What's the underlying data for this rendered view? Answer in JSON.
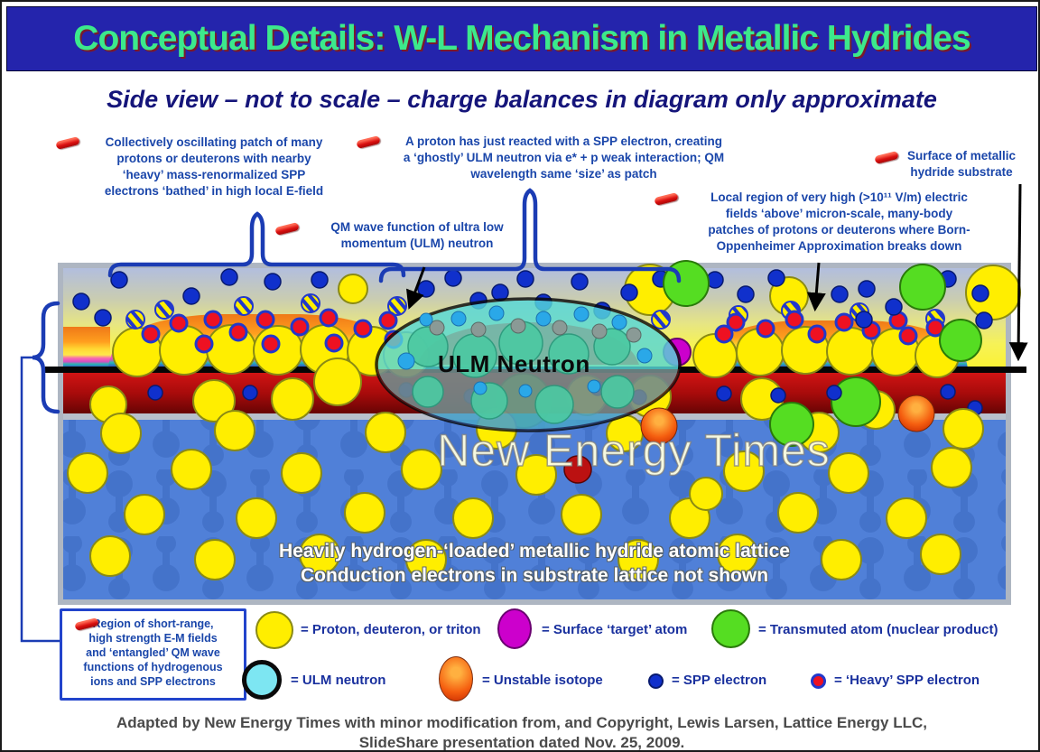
{
  "slide": {
    "title": "Conceptual Details: W-L Mechanism in Metallic Hydrides",
    "subtitle": "Side view – not to scale – charge balances in diagram only approximate",
    "footer_line1": "Adapted by New Energy Times with minor modification from, and Copyright, Lewis Larsen, Lattice Energy LLC,",
    "footer_line2": "SlideShare presentation dated Nov. 25, 2009."
  },
  "annotations": {
    "patch": "Collectively oscillating patch of many\nprotons or deuterons with nearby\n‘heavy’ mass-renormalized SPP\nelectrons ‘bathed’ in high local E-field",
    "reaction": "A proton has just reacted with a SPP electron, creating\na ‘ghostly’ ULM neutron via e* + p weak interaction; QM\nwavelength same ‘size’ as patch",
    "qm_wave": "QM wave function of ultra low\nmomentum (ULM) neutron",
    "surface": "Surface of metallic\nhydride substrate",
    "local_field": "Local region of very high (>10¹¹ V/m) electric\nfields ‘above’ micron-scale, many-body\npatches of protons or deuterons where Born-\nOppenheimer Approximation breaks down"
  },
  "diagram": {
    "ellipse_label": "ULM Neutron",
    "watermark": "New Energy Times",
    "lattice_caption": "Heavily hydrogen-‘loaded’ metallic hydride atomic lattice\nConduction electrons in substrate lattice not shown",
    "side_box": "Region of short-range,\nhigh strength E-M fields\nand ‘entangled’ QM wave\nfunctions of hydrogenous\nions and SPP electrons",
    "particles": [
      [
        "proton",
        150,
        388,
        27
      ],
      [
        "proton",
        202,
        386,
        27
      ],
      [
        "proton",
        254,
        385,
        27
      ],
      [
        "proton",
        306,
        386,
        27
      ],
      [
        "proton",
        358,
        385,
        27
      ],
      [
        "proton",
        410,
        387,
        27
      ],
      [
        "proton",
        448,
        391,
        25
      ],
      [
        "proton",
        389,
        318,
        16
      ],
      [
        "proton",
        718,
        319,
        28
      ],
      [
        "proton",
        872,
        326,
        21
      ],
      [
        "proton",
        1098,
        322,
        30
      ],
      [
        "proton",
        790,
        392,
        24
      ],
      [
        "proton",
        840,
        388,
        26
      ],
      [
        "proton",
        890,
        386,
        26
      ],
      [
        "proton",
        940,
        387,
        26
      ],
      [
        "proton",
        990,
        388,
        26
      ],
      [
        "proton",
        1036,
        392,
        24
      ],
      [
        "striped",
        148,
        352,
        10
      ],
      [
        "striped",
        180,
        341,
        10
      ],
      [
        "striped",
        268,
        337,
        10
      ],
      [
        "striped",
        342,
        334,
        10
      ],
      [
        "striped",
        438,
        337,
        10
      ],
      [
        "striped",
        816,
        347,
        10
      ],
      [
        "striped",
        874,
        342,
        10
      ],
      [
        "striped",
        950,
        344,
        10
      ],
      [
        "striped",
        1034,
        351,
        10
      ],
      [
        "striped",
        730,
        352,
        10
      ],
      [
        "heavy",
        165,
        368,
        9
      ],
      [
        "heavy",
        196,
        356,
        9
      ],
      [
        "heavy",
        224,
        379,
        9
      ],
      [
        "heavy",
        234,
        352,
        9
      ],
      [
        "heavy",
        262,
        366,
        9
      ],
      [
        "heavy",
        292,
        352,
        9
      ],
      [
        "heavy",
        298,
        379,
        9
      ],
      [
        "heavy",
        330,
        360,
        9
      ],
      [
        "heavy",
        362,
        350,
        9
      ],
      [
        "heavy",
        368,
        378,
        9
      ],
      [
        "heavy",
        400,
        362,
        9
      ],
      [
        "heavy",
        428,
        353,
        9
      ],
      [
        "heavy",
        434,
        374,
        9
      ],
      [
        "heavy",
        800,
        368,
        9
      ],
      [
        "heavy",
        813,
        355,
        9
      ],
      [
        "heavy",
        846,
        362,
        9
      ],
      [
        "heavy",
        878,
        352,
        9
      ],
      [
        "heavy",
        903,
        368,
        9
      ],
      [
        "heavy",
        933,
        355,
        9
      ],
      [
        "heavy",
        963,
        364,
        9
      ],
      [
        "heavy",
        993,
        353,
        9
      ],
      [
        "heavy",
        1004,
        370,
        9
      ],
      [
        "heavy",
        1034,
        361,
        9
      ],
      [
        "heavy",
        1054,
        372,
        9
      ],
      [
        "spp",
        88,
        332,
        9
      ],
      [
        "spp",
        112,
        350,
        9
      ],
      [
        "spp",
        130,
        308,
        9
      ],
      [
        "spp",
        210,
        326,
        9
      ],
      [
        "spp",
        252,
        305,
        9
      ],
      [
        "spp",
        300,
        310,
        9
      ],
      [
        "spp",
        352,
        308,
        9
      ],
      [
        "spp",
        470,
        318,
        9
      ],
      [
        "spp",
        500,
        306,
        9
      ],
      [
        "spp",
        528,
        331,
        9
      ],
      [
        "spp",
        552,
        322,
        9
      ],
      [
        "spp",
        580,
        307,
        9
      ],
      [
        "spp",
        600,
        333,
        9
      ],
      [
        "spp",
        640,
        310,
        9
      ],
      [
        "spp",
        665,
        342,
        9
      ],
      [
        "spp",
        695,
        322,
        9
      ],
      [
        "spp",
        730,
        307,
        9
      ],
      [
        "spp",
        790,
        308,
        9
      ],
      [
        "spp",
        824,
        324,
        9
      ],
      [
        "spp",
        858,
        306,
        9
      ],
      [
        "spp",
        928,
        324,
        9
      ],
      [
        "spp",
        958,
        318,
        9
      ],
      [
        "spp",
        988,
        338,
        9
      ],
      [
        "spp",
        1048,
        307,
        9
      ],
      [
        "spp",
        1084,
        323,
        9
      ],
      [
        "spp",
        1088,
        353,
        9
      ],
      [
        "spp",
        955,
        352,
        9
      ],
      [
        "green",
        758,
        312,
        25
      ],
      [
        "green",
        1020,
        316,
        25
      ],
      [
        "green",
        1062,
        375,
        23
      ],
      [
        "magenta",
        748,
        388,
        15
      ],
      [
        "proton",
        118,
        446,
        20
      ],
      [
        "proton",
        235,
        442,
        23
      ],
      [
        "proton",
        322,
        440,
        23
      ],
      [
        "proton",
        372,
        421,
        26
      ],
      [
        "proton",
        648,
        436,
        22
      ],
      [
        "proton",
        718,
        437,
        23
      ],
      [
        "proton",
        842,
        440,
        23
      ],
      [
        "proton",
        968,
        452,
        21
      ],
      [
        "green",
        578,
        442,
        30
      ],
      [
        "green",
        946,
        443,
        27
      ],
      [
        "spp",
        170,
        433,
        8
      ],
      [
        "spp",
        275,
        433,
        8
      ],
      [
        "spp",
        448,
        430,
        8
      ],
      [
        "spp",
        520,
        437,
        8
      ],
      [
        "spp",
        660,
        428,
        8
      ],
      [
        "spp",
        706,
        438,
        8
      ],
      [
        "spp",
        800,
        434,
        8
      ],
      [
        "spp",
        860,
        436,
        8
      ],
      [
        "spp",
        922,
        433,
        8
      ],
      [
        "spp",
        1048,
        432,
        8
      ],
      [
        "spp",
        1078,
        450,
        8
      ],
      [
        "proton",
        132,
        478,
        22
      ],
      [
        "proton",
        258,
        475,
        22
      ],
      [
        "proton",
        425,
        477,
        22
      ],
      [
        "proton",
        548,
        473,
        22
      ],
      [
        "proton",
        690,
        478,
        20
      ],
      [
        "proton",
        905,
        477,
        22
      ],
      [
        "proton",
        1065,
        473,
        22
      ],
      [
        "proton",
        95,
        522,
        22
      ],
      [
        "proton",
        210,
        518,
        22
      ],
      [
        "proton",
        332,
        522,
        22
      ],
      [
        "proton",
        465,
        518,
        22
      ],
      [
        "proton",
        592,
        524,
        22
      ],
      [
        "proton",
        822,
        520,
        22
      ],
      [
        "proton",
        938,
        522,
        22
      ],
      [
        "proton",
        1052,
        516,
        22
      ],
      [
        "proton",
        158,
        568,
        22
      ],
      [
        "proton",
        282,
        572,
        22
      ],
      [
        "proton",
        402,
        566,
        22
      ],
      [
        "proton",
        522,
        572,
        22
      ],
      [
        "proton",
        642,
        568,
        22
      ],
      [
        "proton",
        762,
        572,
        22
      ],
      [
        "proton",
        882,
        566,
        22
      ],
      [
        "proton",
        1002,
        572,
        22
      ],
      [
        "proton",
        780,
        545,
        18
      ],
      [
        "proton",
        120,
        614,
        22
      ],
      [
        "proton",
        236,
        618,
        22
      ],
      [
        "proton",
        352,
        612,
        22
      ],
      [
        "proton",
        470,
        618,
        22
      ],
      [
        "proton",
        705,
        618,
        22
      ],
      [
        "proton",
        815,
        612,
        22
      ],
      [
        "proton",
        930,
        618,
        22
      ],
      [
        "proton",
        1040,
        612,
        22
      ],
      [
        "green",
        875,
        468,
        24
      ],
      [
        "orange",
        728,
        470,
        20
      ],
      [
        "orange",
        1013,
        456,
        20
      ],
      [
        "darkred",
        638,
        518,
        15
      ],
      [
        "e_teal",
        472,
        382,
        22
      ],
      [
        "e_teal",
        524,
        392,
        24
      ],
      [
        "e_teal",
        575,
        378,
        24
      ],
      [
        "e_teal",
        628,
        390,
        22
      ],
      [
        "e_teal",
        676,
        382,
        20
      ],
      [
        "e_teal",
        472,
        432,
        17
      ],
      [
        "e_teal",
        540,
        442,
        20
      ],
      [
        "e_teal",
        612,
        446,
        21
      ],
      [
        "e_teal",
        682,
        432,
        18
      ],
      [
        "e_gray",
        482,
        361,
        8
      ],
      [
        "e_gray",
        528,
        363,
        8
      ],
      [
        "e_gray",
        572,
        359,
        8
      ],
      [
        "e_gray",
        618,
        361,
        8
      ],
      [
        "e_gray",
        662,
        365,
        8
      ],
      [
        "e_gray",
        700,
        369,
        8
      ],
      [
        "e_cyan",
        506,
        351,
        8
      ],
      [
        "e_cyan",
        548,
        345,
        8
      ],
      [
        "e_cyan",
        600,
        351,
        8
      ],
      [
        "e_cyan",
        642,
        346,
        8
      ],
      [
        "e_cyan",
        684,
        355,
        8
      ],
      [
        "e_cyan",
        530,
        428,
        7
      ],
      [
        "e_cyan",
        580,
        431,
        7
      ],
      [
        "e_cyan",
        656,
        426,
        7
      ],
      [
        "e_cyan",
        712,
        392,
        8
      ],
      [
        "e_cyan",
        448,
        398,
        9
      ],
      [
        "e_cyan",
        470,
        352,
        7
      ]
    ]
  },
  "legend": {
    "row1": [
      {
        "swatch": "proton",
        "label": "= Proton, deuteron, or triton"
      },
      {
        "swatch": "magenta",
        "label": "= Surface ‘target’ atom"
      },
      {
        "swatch": "green",
        "label": "= Transmuted atom (nuclear product)"
      }
    ],
    "row2": [
      {
        "swatch": "cyan",
        "label": "= ULM neutron"
      },
      {
        "swatch": "orange",
        "label": "= Unstable isotope"
      },
      {
        "swatch": "spp",
        "label": "= SPP electron"
      },
      {
        "swatch": "heavy",
        "label": "= ‘Heavy’ SPP electron"
      }
    ]
  },
  "colors": {
    "title_text": "#3ce98c",
    "title_bg": "#2424ac",
    "annotation": "#1a46aa",
    "proton": "#ffee00",
    "spp": "#1030cc",
    "heavy": "#ee1122",
    "green": "#55dd22",
    "magenta": "#cc00cc",
    "cyan": "#7de6f2",
    "orange": "#f55f10",
    "surface_line": "#050505",
    "brace": "#1b3cb4"
  }
}
